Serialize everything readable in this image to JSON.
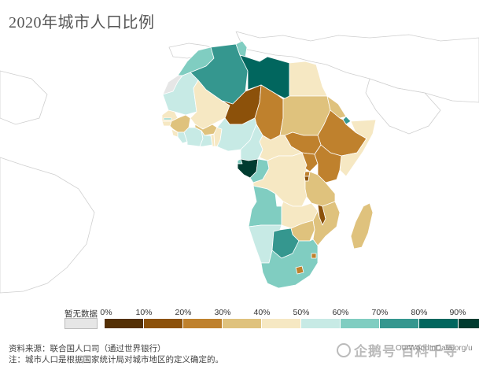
{
  "title": "2020年城市人口比例",
  "map": {
    "region": "Africa",
    "colors": {
      "nodata": "#e6e6e6",
      "ocean": "#ffffff",
      "other_land": "#ffffff",
      "border": "#c8c8c8",
      "country_border": "#ffffff"
    },
    "countries": [
      {
        "name": "Morocco",
        "color": "#80cdc1"
      },
      {
        "name": "Western Sahara",
        "color": "#e6e6e6"
      },
      {
        "name": "Algeria",
        "color": "#35978f"
      },
      {
        "name": "Tunisia",
        "color": "#80cdc1"
      },
      {
        "name": "Libya",
        "color": "#01665e"
      },
      {
        "name": "Egypt",
        "color": "#f6e8c3"
      },
      {
        "name": "Mauritania",
        "color": "#c7eae5"
      },
      {
        "name": "Mali",
        "color": "#f6e8c3"
      },
      {
        "name": "Niger",
        "color": "#8c510a"
      },
      {
        "name": "Chad",
        "color": "#bf812d"
      },
      {
        "name": "Sudan",
        "color": "#dfc27d"
      },
      {
        "name": "Eritrea",
        "color": "#dfc27d"
      },
      {
        "name": "Djibouti",
        "color": "#35978f"
      },
      {
        "name": "Ethiopia",
        "color": "#bf812d"
      },
      {
        "name": "South Sudan",
        "color": "#bf812d"
      },
      {
        "name": "Somalia",
        "color": "#f6e8c3"
      },
      {
        "name": "Senegal",
        "color": "#f6e8c3"
      },
      {
        "name": "Gambia",
        "color": "#80cdc1"
      },
      {
        "name": "Guinea-Bissau",
        "color": "#f6e8c3"
      },
      {
        "name": "Guinea",
        "color": "#dfc27d"
      },
      {
        "name": "Sierra Leone",
        "color": "#f6e8c3"
      },
      {
        "name": "Liberia",
        "color": "#c7eae5"
      },
      {
        "name": "Cote d'Ivoire",
        "color": "#c7eae5"
      },
      {
        "name": "Burkina Faso",
        "color": "#dfc27d"
      },
      {
        "name": "Ghana",
        "color": "#c7eae5"
      },
      {
        "name": "Togo",
        "color": "#f6e8c3"
      },
      {
        "name": "Benin",
        "color": "#f6e8c3"
      },
      {
        "name": "Nigeria",
        "color": "#c7eae5"
      },
      {
        "name": "Cameroon",
        "color": "#c7eae5"
      },
      {
        "name": "Central African Republic",
        "color": "#f6e8c3"
      },
      {
        "name": "Equatorial Guinea",
        "color": "#80cdc1"
      },
      {
        "name": "Gabon",
        "color": "#003c30"
      },
      {
        "name": "Congo",
        "color": "#80cdc1"
      },
      {
        "name": "Democratic Republic of Congo",
        "color": "#f6e8c3"
      },
      {
        "name": "Uganda",
        "color": "#bf812d"
      },
      {
        "name": "Kenya",
        "color": "#bf812d"
      },
      {
        "name": "Rwanda",
        "color": "#bf812d"
      },
      {
        "name": "Burundi",
        "color": "#8c510a"
      },
      {
        "name": "Tanzania",
        "color": "#dfc27d"
      },
      {
        "name": "Angola",
        "color": "#80cdc1"
      },
      {
        "name": "Zambia",
        "color": "#f6e8c3"
      },
      {
        "name": "Malawi",
        "color": "#8c510a"
      },
      {
        "name": "Mozambique",
        "color": "#dfc27d"
      },
      {
        "name": "Zimbabwe",
        "color": "#dfc27d"
      },
      {
        "name": "Namibia",
        "color": "#c7eae5"
      },
      {
        "name": "Botswana",
        "color": "#35978f"
      },
      {
        "name": "South Africa",
        "color": "#80cdc1"
      },
      {
        "name": "Lesotho",
        "color": "#bf812d"
      },
      {
        "name": "Eswatini",
        "color": "#bf812d"
      },
      {
        "name": "Madagascar",
        "color": "#dfc27d"
      }
    ]
  },
  "legend": {
    "nodata_label": "暂无数据",
    "ticks": [
      "0%",
      "10%",
      "20%",
      "30%",
      "40%",
      "50%",
      "60%",
      "70%",
      "80%",
      "90%"
    ],
    "colors": [
      "#543005",
      "#8c510a",
      "#bf812d",
      "#dfc27d",
      "#f6e8c3",
      "#c7eae5",
      "#80cdc1",
      "#35978f",
      "#01665e",
      "#003c30"
    ]
  },
  "footer": {
    "source": "资料来源：联合国人口司（通过世界银行）",
    "note": "注：城市人口是根据国家统计局对城市地区的定义确定的。",
    "credit": "OurWorldInData.org/u"
  },
  "watermark": "企鹅号 百科千寻"
}
